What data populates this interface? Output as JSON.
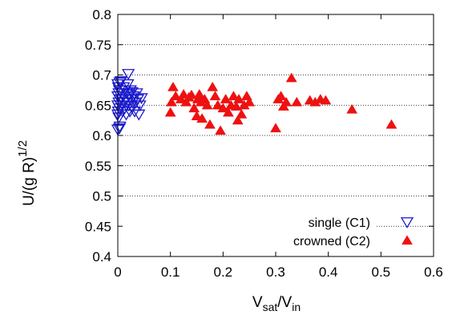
{
  "chart_data": {
    "type": "scatter",
    "xlabel": {
      "base": "V",
      "sub1": "sat",
      "mid": "/V",
      "sub2": "in"
    },
    "ylabel": {
      "base": "U/(g R)",
      "sup": "1/2"
    },
    "xlim": [
      0,
      0.6
    ],
    "ylim": [
      0.4,
      0.8
    ],
    "xticks": [
      0,
      0.1,
      0.2,
      0.3,
      0.4,
      0.5,
      0.6
    ],
    "yticks": [
      0.4,
      0.45,
      0.5,
      0.55,
      0.6,
      0.65,
      0.7,
      0.75,
      0.8
    ],
    "xtick_labels": [
      "0",
      "0.1",
      "0.2",
      "0.3",
      "0.4",
      "0.5",
      "0.6"
    ],
    "ytick_labels": [
      "0.4",
      "0.45",
      "0.5",
      "0.55",
      "0.6",
      "0.65",
      "0.7",
      "0.75",
      "0.8"
    ],
    "grid": {
      "horizontal": true,
      "style": "dotted"
    },
    "legend_position": "bottom-right",
    "series": [
      {
        "name": "single (C1)",
        "marker": "open-triangle-down",
        "color": "#1a1acc",
        "points": [
          [
            0.0,
            0.61
          ],
          [
            0.003,
            0.612
          ],
          [
            0.004,
            0.615
          ],
          [
            0.002,
            0.63
          ],
          [
            0.0,
            0.635
          ],
          [
            0.001,
            0.64
          ],
          [
            0.003,
            0.645
          ],
          [
            0.0,
            0.65
          ],
          [
            0.002,
            0.655
          ],
          [
            0.004,
            0.66
          ],
          [
            0.0,
            0.665
          ],
          [
            0.002,
            0.67
          ],
          [
            0.003,
            0.675
          ],
          [
            0.001,
            0.68
          ],
          [
            0.0,
            0.685
          ],
          [
            0.004,
            0.688
          ],
          [
            0.006,
            0.69
          ],
          [
            0.007,
            0.66
          ],
          [
            0.008,
            0.67
          ],
          [
            0.006,
            0.65
          ],
          [
            0.009,
            0.64
          ],
          [
            0.01,
            0.665
          ],
          [
            0.011,
            0.68
          ],
          [
            0.012,
            0.655
          ],
          [
            0.013,
            0.645
          ],
          [
            0.014,
            0.675
          ],
          [
            0.015,
            0.66
          ],
          [
            0.016,
            0.635
          ],
          [
            0.017,
            0.67
          ],
          [
            0.018,
            0.655
          ],
          [
            0.019,
            0.685
          ],
          [
            0.02,
            0.702
          ],
          [
            0.021,
            0.65
          ],
          [
            0.022,
            0.668
          ],
          [
            0.023,
            0.64
          ],
          [
            0.024,
            0.675
          ],
          [
            0.025,
            0.66
          ],
          [
            0.026,
            0.648
          ],
          [
            0.027,
            0.672
          ],
          [
            0.028,
            0.655
          ],
          [
            0.03,
            0.665
          ],
          [
            0.032,
            0.64
          ],
          [
            0.034,
            0.655
          ],
          [
            0.036,
            0.67
          ],
          [
            0.038,
            0.66
          ],
          [
            0.04,
            0.635
          ],
          [
            0.042,
            0.65
          ],
          [
            0.045,
            0.662
          ]
        ]
      },
      {
        "name": "crowned (C2)",
        "marker": "filled-triangle-up",
        "color": "#ee1111",
        "points": [
          [
            0.1,
            0.638
          ],
          [
            0.102,
            0.655
          ],
          [
            0.105,
            0.68
          ],
          [
            0.11,
            0.665
          ],
          [
            0.12,
            0.66
          ],
          [
            0.125,
            0.668
          ],
          [
            0.13,
            0.655
          ],
          [
            0.135,
            0.663
          ],
          [
            0.14,
            0.667
          ],
          [
            0.145,
            0.645
          ],
          [
            0.15,
            0.632
          ],
          [
            0.152,
            0.66
          ],
          [
            0.155,
            0.668
          ],
          [
            0.158,
            0.655
          ],
          [
            0.16,
            0.628
          ],
          [
            0.165,
            0.66
          ],
          [
            0.17,
            0.65
          ],
          [
            0.175,
            0.618
          ],
          [
            0.18,
            0.68
          ],
          [
            0.185,
            0.665
          ],
          [
            0.19,
            0.65
          ],
          [
            0.195,
            0.608
          ],
          [
            0.2,
            0.645
          ],
          [
            0.205,
            0.66
          ],
          [
            0.21,
            0.638
          ],
          [
            0.215,
            0.65
          ],
          [
            0.22,
            0.665
          ],
          [
            0.225,
            0.648
          ],
          [
            0.228,
            0.625
          ],
          [
            0.23,
            0.66
          ],
          [
            0.235,
            0.635
          ],
          [
            0.24,
            0.65
          ],
          [
            0.245,
            0.665
          ],
          [
            0.25,
            0.655
          ],
          [
            0.3,
            0.612
          ],
          [
            0.305,
            0.66
          ],
          [
            0.31,
            0.665
          ],
          [
            0.315,
            0.648
          ],
          [
            0.32,
            0.655
          ],
          [
            0.33,
            0.695
          ],
          [
            0.34,
            0.655
          ],
          [
            0.365,
            0.658
          ],
          [
            0.375,
            0.655
          ],
          [
            0.385,
            0.66
          ],
          [
            0.395,
            0.658
          ],
          [
            0.445,
            0.643
          ],
          [
            0.52,
            0.618
          ]
        ]
      }
    ]
  }
}
